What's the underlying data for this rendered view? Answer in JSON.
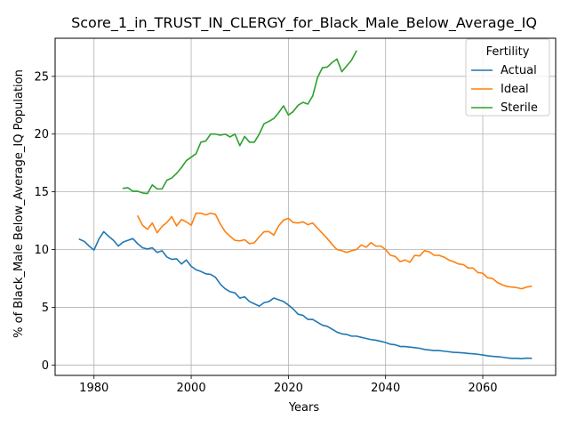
{
  "chart_data": {
    "type": "line",
    "title": "Score_1_in_TRUST_IN_CLERGY_for_Black_Male_Below_Average_IQ",
    "xlabel": "Years",
    "ylabel": "% of Black_Male Below_Average_IQ Population",
    "xlim": [
      1972,
      2075
    ],
    "ylim": [
      -0.9,
      28.3
    ],
    "x_ticks": [
      1980,
      2000,
      2020,
      2040,
      2060
    ],
    "y_ticks": [
      0,
      5,
      10,
      15,
      20,
      25
    ],
    "x_tick_labels": [
      "1980",
      "2000",
      "2020",
      "2040",
      "2060"
    ],
    "y_tick_labels": [
      "0",
      "5",
      "10",
      "15",
      "20",
      "25"
    ],
    "grid": true,
    "legend": {
      "title": "Fertility",
      "placement": "top-right",
      "labels": [
        "Actual",
        "Ideal",
        "Sterile"
      ]
    },
    "series": [
      {
        "name": "Actual",
        "color": "#1f77b4",
        "x": [
          1977,
          1978,
          1979,
          1980,
          1981,
          1982,
          1983,
          1984,
          1985,
          1986,
          1987,
          1988,
          1989,
          1990,
          1991,
          1992,
          1993,
          1994,
          1995,
          1996,
          1997,
          1998,
          1999,
          2000,
          2001,
          2002,
          2003,
          2004,
          2005,
          2006,
          2007,
          2008,
          2009,
          2010,
          2011,
          2012,
          2013,
          2014,
          2015,
          2016,
          2017,
          2018,
          2019,
          2020,
          2021,
          2022,
          2023,
          2024,
          2025,
          2026,
          2027,
          2028,
          2029,
          2030,
          2031,
          2032,
          2033,
          2034,
          2035,
          2036,
          2037,
          2038,
          2039,
          2040,
          2041,
          2042,
          2043,
          2044,
          2045,
          2046,
          2047,
          2048,
          2049,
          2050,
          2051,
          2052,
          2053,
          2054,
          2055,
          2056,
          2057,
          2058,
          2059,
          2060,
          2061,
          2062,
          2063,
          2064,
          2065,
          2066,
          2067,
          2068,
          2069,
          2070
        ],
        "values": [
          10.9,
          10.7,
          10.3,
          9.95,
          10.9,
          11.55,
          11.15,
          10.8,
          10.3,
          10.65,
          10.8,
          10.95,
          10.5,
          10.15,
          10.05,
          10.15,
          9.75,
          9.9,
          9.35,
          9.15,
          9.2,
          8.75,
          9.1,
          8.55,
          8.25,
          8.1,
          7.9,
          7.85,
          7.6,
          7.0,
          6.6,
          6.35,
          6.25,
          5.8,
          5.9,
          5.5,
          5.3,
          5.1,
          5.4,
          5.5,
          5.8,
          5.65,
          5.5,
          5.2,
          4.85,
          4.4,
          4.3,
          3.95,
          3.95,
          3.7,
          3.45,
          3.35,
          3.1,
          2.85,
          2.7,
          2.65,
          2.5,
          2.5,
          2.4,
          2.3,
          2.2,
          2.15,
          2.05,
          1.95,
          1.8,
          1.75,
          1.6,
          1.6,
          1.55,
          1.5,
          1.45,
          1.35,
          1.3,
          1.25,
          1.25,
          1.2,
          1.15,
          1.1,
          1.08,
          1.05,
          1.0,
          0.97,
          0.93,
          0.87,
          0.8,
          0.75,
          0.72,
          0.68,
          0.62,
          0.58,
          0.58,
          0.55,
          0.6,
          0.58
        ]
      },
      {
        "name": "Ideal",
        "color": "#ff7f0e",
        "x": [
          1989,
          1990,
          1991,
          1992,
          1993,
          1994,
          1995,
          1996,
          1997,
          1998,
          1999,
          2000,
          2001,
          2002,
          2003,
          2004,
          2005,
          2006,
          2007,
          2008,
          2009,
          2010,
          2011,
          2012,
          2013,
          2014,
          2015,
          2016,
          2017,
          2018,
          2019,
          2020,
          2021,
          2022,
          2023,
          2024,
          2025,
          2026,
          2027,
          2028,
          2029,
          2030,
          2031,
          2032,
          2033,
          2034,
          2035,
          2036,
          2037,
          2038,
          2039,
          2040,
          2041,
          2042,
          2043,
          2044,
          2045,
          2046,
          2047,
          2048,
          2049,
          2050,
          2051,
          2052,
          2053,
          2054,
          2055,
          2056,
          2057,
          2058,
          2059,
          2060,
          2061,
          2062,
          2063,
          2064,
          2065,
          2066,
          2067,
          2068,
          2069,
          2070
        ],
        "values": [
          12.9,
          12.1,
          11.75,
          12.3,
          11.45,
          12.0,
          12.35,
          12.85,
          12.05,
          12.6,
          12.4,
          12.1,
          13.15,
          13.15,
          13.0,
          13.15,
          13.05,
          12.2,
          11.55,
          11.15,
          10.8,
          10.75,
          10.85,
          10.5,
          10.6,
          11.1,
          11.55,
          11.55,
          11.25,
          12.05,
          12.55,
          12.7,
          12.35,
          12.3,
          12.4,
          12.15,
          12.3,
          11.85,
          11.4,
          10.95,
          10.45,
          10.0,
          9.9,
          9.75,
          9.9,
          10.0,
          10.4,
          10.2,
          10.6,
          10.3,
          10.3,
          10.0,
          9.5,
          9.4,
          8.95,
          9.1,
          8.9,
          9.5,
          9.45,
          9.9,
          9.8,
          9.5,
          9.5,
          9.35,
          9.1,
          8.95,
          8.75,
          8.7,
          8.4,
          8.4,
          8.0,
          7.95,
          7.55,
          7.5,
          7.15,
          6.95,
          6.8,
          6.75,
          6.7,
          6.6,
          6.75,
          6.82
        ]
      },
      {
        "name": "Sterile",
        "color": "#2ca02c",
        "x": [
          1986,
          1987,
          1988,
          1989,
          1990,
          1991,
          1992,
          1993,
          1994,
          1995,
          1996,
          1997,
          1998,
          1999,
          2000,
          2001,
          2002,
          2003,
          2004,
          2005,
          2006,
          2007,
          2008,
          2009,
          2010,
          2011,
          2012,
          2013,
          2014,
          2015,
          2016,
          2017,
          2018,
          2019,
          2020,
          2021,
          2022,
          2023,
          2024,
          2025,
          2026,
          2027,
          2028,
          2029,
          2030,
          2031,
          2032,
          2033,
          2034
        ],
        "values": [
          15.3,
          15.35,
          15.05,
          15.05,
          14.9,
          14.85,
          15.6,
          15.25,
          15.25,
          16.0,
          16.2,
          16.6,
          17.1,
          17.7,
          18.0,
          18.3,
          19.3,
          19.4,
          20.0,
          20.0,
          19.9,
          20.0,
          19.75,
          20.0,
          19.0,
          19.8,
          19.3,
          19.3,
          20.0,
          20.9,
          21.1,
          21.35,
          21.85,
          22.45,
          21.65,
          21.95,
          22.5,
          22.75,
          22.6,
          23.3,
          24.9,
          25.75,
          25.8,
          26.2,
          26.5,
          25.4,
          25.9,
          26.4,
          27.2
        ]
      }
    ]
  }
}
